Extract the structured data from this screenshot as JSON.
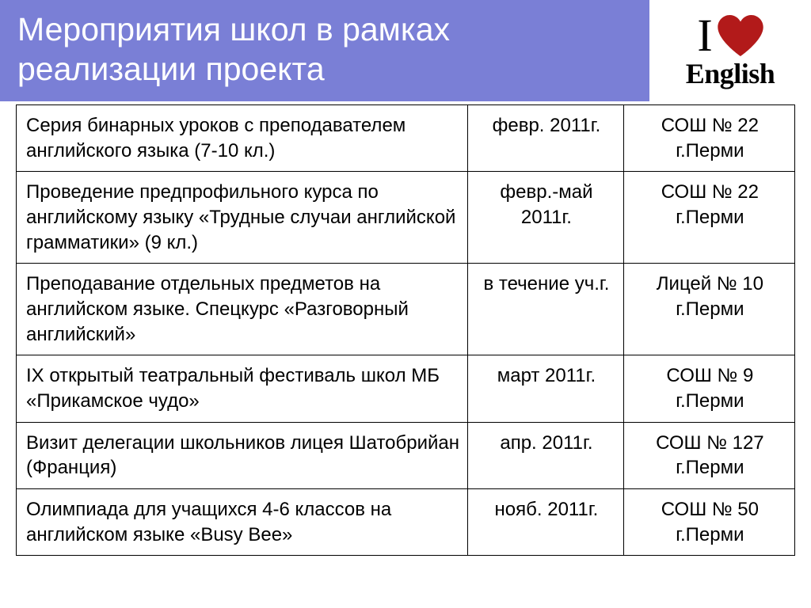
{
  "header": {
    "title": "Мероприятия школ в рамках реализации проекта",
    "accent_color": "#7a7fd6",
    "bullet_color": "#e8b050",
    "title_color": "#ffffff"
  },
  "logo": {
    "letter": "I",
    "heart_color": "#b21a1a",
    "word": "English"
  },
  "table": {
    "border_color": "#000000",
    "text_color": "#000000",
    "font_size": 24,
    "columns": [
      {
        "key": "activity",
        "align": "left",
        "width_pct": 58
      },
      {
        "key": "date",
        "align": "center",
        "width_pct": 20
      },
      {
        "key": "school",
        "align": "center",
        "width_pct": 22
      }
    ],
    "rows": [
      {
        "activity": "Серия бинарных уроков с преподавателем английского языка (7-10 кл.)",
        "date": "февр. 2011г.",
        "school": "СОШ № 22 г.Перми"
      },
      {
        "activity": "Проведение предпрофильного курса по английскому языку «Трудные случаи английской грамматики» (9 кл.)",
        "date": "февр.-май 2011г.",
        "school": "СОШ № 22 г.Перми"
      },
      {
        "activity": "Преподавание отдельных предметов на английском языке. Спецкурс «Разговорный английский»",
        "date": "в течение уч.г.",
        "school": "Лицей № 10 г.Перми"
      },
      {
        "activity": "IX открытый театральный фестиваль школ МБ «Прикамское чудо»",
        "date": "март 2011г.",
        "school": "СОШ № 9 г.Перми"
      },
      {
        "activity": "Визит делегации школьников лицея Шатобрийан (Франция)",
        "date": "апр. 2011г.",
        "school": "СОШ № 127 г.Перми"
      },
      {
        "activity": "Олимпиада для учащихся 4-6 классов на английском языке «Busy Bee»",
        "date": "нояб. 2011г.",
        "school": "СОШ № 50 г.Перми"
      }
    ]
  }
}
